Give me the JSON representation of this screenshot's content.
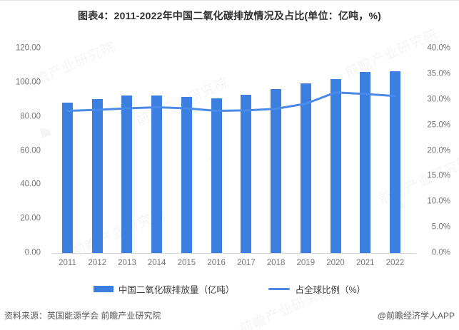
{
  "page": {
    "watermark_text": "前瞻产业研究院",
    "watermark_logo_glyph": "◔"
  },
  "footer": {
    "source": "资料来源：英国能源学会 前瞻产业研究院",
    "brand": "@前瞻经济学人APP"
  },
  "chart_data": {
    "type": "bar",
    "title": "图表4：2011-2022年中国二氧化碳排放情况及占比(单位：亿吨，%)",
    "categories": [
      "2011",
      "2012",
      "2013",
      "2014",
      "2015",
      "2016",
      "2017",
      "2018",
      "2019",
      "2020",
      "2021",
      "2022"
    ],
    "series": [
      {
        "name": "中国二氧化碳排放量（亿吨）",
        "type": "bar",
        "axis": "left",
        "color": "#3b7fe0",
        "values": [
          88.3,
          90.2,
          92.6,
          92.6,
          91.6,
          90.9,
          93.0,
          96.2,
          99.4,
          102.2,
          106.3,
          106.6
        ]
      },
      {
        "name": "占全球比例（%）",
        "type": "line",
        "axis": "right",
        "color": "#4a8ae8",
        "values": [
          27.8,
          28.0,
          28.3,
          28.5,
          28.3,
          27.8,
          27.9,
          28.2,
          29.2,
          31.4,
          31.1,
          30.7
        ]
      }
    ],
    "left_axis": {
      "min": 0,
      "max": 120,
      "tick_values": [
        0,
        20,
        40,
        60,
        80,
        100,
        120
      ],
      "tick_labels": [
        "0.00",
        "20.00",
        "40.00",
        "60.00",
        "80.00",
        "100.00",
        "120.00"
      ]
    },
    "right_axis": {
      "min": 0,
      "max": 40,
      "tick_values": [
        0,
        5,
        10,
        15,
        20,
        25,
        30,
        35,
        40
      ],
      "tick_labels": [
        "0.0%",
        "5.0%",
        "10.0%",
        "15.0%",
        "20.0%",
        "25.0%",
        "30.0%",
        "35.0%",
        "40.0%"
      ]
    },
    "grid": false,
    "legend_position": "bottom",
    "xlabel": "",
    "ylabel_left": "亿吨",
    "ylabel_right": "%"
  }
}
